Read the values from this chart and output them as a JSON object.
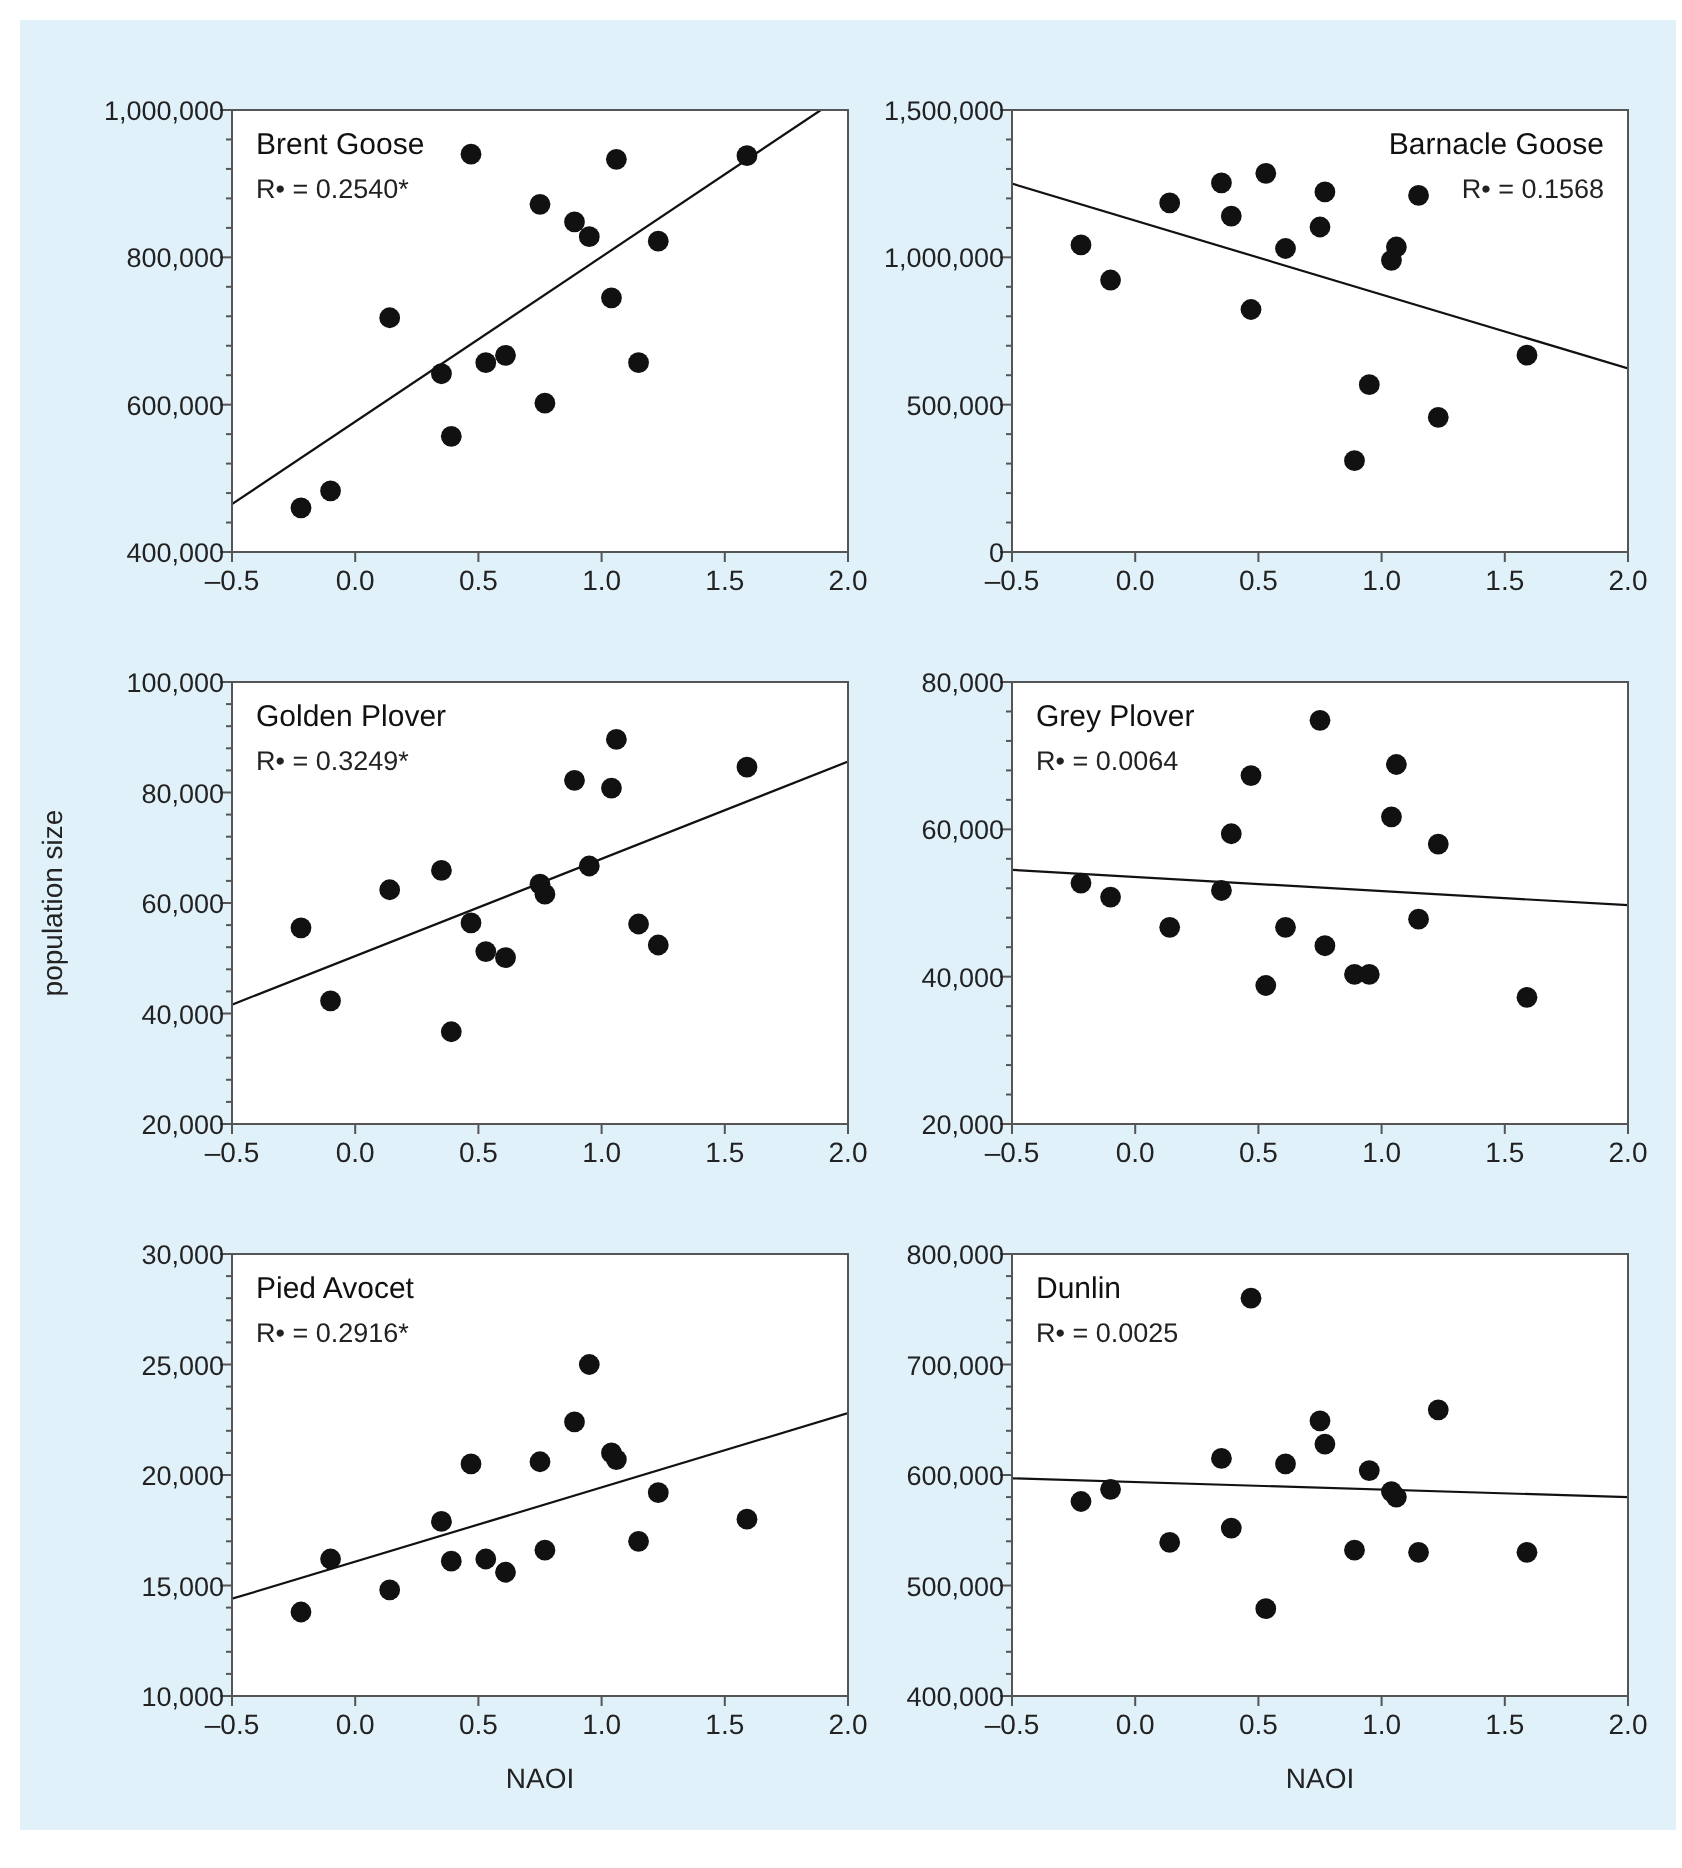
{
  "chart_data": [
    {
      "type": "scatter",
      "legend": "top left",
      "annotations": [
        "R• = 0.2540*"
      ],
      "xlim": [
        -0.5,
        2.0
      ],
      "xticks": [
        {
          "value": -0.5,
          "label": "–0.5"
        },
        {
          "value": 0,
          "label": "0.0"
        },
        {
          "value": 0.5,
          "label": "0.5"
        },
        {
          "value": 1,
          "label": "1.0"
        },
        {
          "value": 1.5,
          "label": "1.5"
        },
        {
          "value": 2,
          "label": "2.0"
        }
      ],
      "ylim": [
        400000,
        1000000
      ],
      "yticks": [
        {
          "value": 400000,
          "label": "400,000"
        },
        {
          "value": 440000,
          "label": null
        },
        {
          "value": 480000,
          "label": null
        },
        {
          "value": 520000,
          "label": null
        },
        {
          "value": 560000,
          "label": null
        },
        {
          "value": 600000,
          "label": "600,000"
        },
        {
          "value": 640000,
          "label": null
        },
        {
          "value": 680000,
          "label": null
        },
        {
          "value": 720000,
          "label": null
        },
        {
          "value": 760000,
          "label": null
        },
        {
          "value": 800000,
          "label": "800,000"
        },
        {
          "value": 840000,
          "label": null
        },
        {
          "value": 880000,
          "label": null
        },
        {
          "value": 920000,
          "label": null
        },
        {
          "value": 960000,
          "label": null
        },
        {
          "value": 1000000,
          "label": "1,000,000"
        }
      ],
      "x": [
        -0.22,
        -0.1,
        0.14,
        0.35,
        0.39,
        0.47,
        0.53,
        0.61,
        0.75,
        0.77,
        0.89,
        0.95,
        1.04,
        1.06,
        1.15,
        1.23,
        1.59
      ],
      "series": [
        {
          "name": "Brent Goose",
          "marker": "circle",
          "color": "#111111",
          "values": [
            460000,
            483000,
            718000,
            642000,
            557000,
            940000,
            657000,
            667000,
            872000,
            602000,
            848000,
            828000,
            745000,
            933000,
            657000,
            822000,
            938000
          ]
        },
        {
          "type": "line",
          "color": "#111111",
          "x": [
            -0.5,
            1.89
          ],
          "values": [
            465000,
            1000000
          ]
        }
      ]
    },
    {
      "type": "scatter",
      "legend": "top right",
      "annotations": [
        "R• = 0.1568"
      ],
      "xlim": [
        -0.5,
        2.0
      ],
      "xticks": [
        {
          "value": -0.5,
          "label": "–0.5"
        },
        {
          "value": 0,
          "label": "0.0"
        },
        {
          "value": 0.5,
          "label": "0.5"
        },
        {
          "value": 1,
          "label": "1.0"
        },
        {
          "value": 1.5,
          "label": "1.5"
        },
        {
          "value": 2,
          "label": "2.0"
        }
      ],
      "ylim": [
        0,
        1500000
      ],
      "yticks": [
        0,
        {
          "value": 100000,
          "label": null
        },
        {
          "value": 200000,
          "label": null
        },
        {
          "value": 300000,
          "label": null
        },
        {
          "value": 400000,
          "label": null
        },
        {
          "value": 500000,
          "label": "500,000"
        },
        {
          "value": 600000,
          "label": null
        },
        {
          "value": 700000,
          "label": null
        },
        {
          "value": 800000,
          "label": null
        },
        {
          "value": 900000,
          "label": null
        },
        {
          "value": 1000000,
          "label": "1,000,000"
        },
        {
          "value": 1100000,
          "label": null
        },
        {
          "value": 1200000,
          "label": null
        },
        {
          "value": 1300000,
          "label": null
        },
        {
          "value": 1400000,
          "label": null
        },
        {
          "value": 1500000,
          "label": "1,500,000"
        }
      ],
      "x": [
        -0.22,
        -0.1,
        0.14,
        0.35,
        0.39,
        0.47,
        0.53,
        0.61,
        0.75,
        0.77,
        0.89,
        0.95,
        1.04,
        1.06,
        1.15,
        1.23,
        1.59
      ],
      "series": [
        {
          "name": "Barnacle Goose",
          "marker": "circle",
          "color": "#111111",
          "values": [
            1042000,
            923000,
            1185000,
            1253000,
            1140000,
            823000,
            1285000,
            1030000,
            1103000,
            1222000,
            310000,
            568000,
            990000,
            1035000,
            1210000,
            457000,
            668000
          ]
        },
        {
          "type": "line",
          "color": "#111111",
          "x": [
            -0.5,
            2.0
          ],
          "values": [
            1250000,
            623000
          ]
        }
      ]
    },
    {
      "type": "scatter",
      "legend": "top left",
      "ylabel": "population size",
      "annotations": [
        "R• = 0.3249*"
      ],
      "xlim": [
        -0.5,
        2.0
      ],
      "xticks": [
        {
          "value": -0.5,
          "label": "–0.5"
        },
        {
          "value": 0,
          "label": "0.0"
        },
        {
          "value": 0.5,
          "label": "0.5"
        },
        {
          "value": 1,
          "label": "1.0"
        },
        {
          "value": 1.5,
          "label": "1.5"
        },
        {
          "value": 2,
          "label": "2.0"
        }
      ],
      "ylim": [
        20000,
        100000
      ],
      "yticks": [
        {
          "value": 20000,
          "label": "20,000"
        },
        {
          "value": 24000,
          "label": null
        },
        {
          "value": 28000,
          "label": null
        },
        {
          "value": 32000,
          "label": null
        },
        {
          "value": 36000,
          "label": null
        },
        {
          "value": 40000,
          "label": "40,000"
        },
        {
          "value": 44000,
          "label": null
        },
        {
          "value": 48000,
          "label": null
        },
        {
          "value": 52000,
          "label": null
        },
        {
          "value": 56000,
          "label": null
        },
        {
          "value": 60000,
          "label": "60,000"
        },
        {
          "value": 64000,
          "label": null
        },
        {
          "value": 68000,
          "label": null
        },
        {
          "value": 72000,
          "label": null
        },
        {
          "value": 76000,
          "label": null
        },
        {
          "value": 80000,
          "label": "80,000"
        },
        {
          "value": 84000,
          "label": null
        },
        {
          "value": 88000,
          "label": null
        },
        {
          "value": 92000,
          "label": null
        },
        {
          "value": 96000,
          "label": null
        },
        {
          "value": 100000,
          "label": "100,000"
        }
      ],
      "x": [
        -0.22,
        -0.1,
        0.14,
        0.35,
        0.39,
        0.47,
        0.53,
        0.61,
        0.75,
        0.77,
        0.89,
        0.95,
        1.04,
        1.06,
        1.15,
        1.23,
        1.59
      ],
      "series": [
        {
          "name": "Golden Plover",
          "marker": "circle",
          "color": "#111111",
          "values": [
            55500,
            42300,
            62400,
            65900,
            36700,
            56400,
            51200,
            50100,
            63400,
            61600,
            82200,
            66700,
            80800,
            89600,
            56200,
            52400,
            84600
          ]
        },
        {
          "type": "line",
          "color": "#111111",
          "x": [
            -0.5,
            2.0
          ],
          "values": [
            41600,
            85600
          ]
        }
      ]
    },
    {
      "type": "scatter",
      "legend": "top left",
      "annotations": [
        "R• = 0.0064"
      ],
      "xlim": [
        -0.5,
        2.0
      ],
      "xticks": [
        {
          "value": -0.5,
          "label": "–0.5"
        },
        {
          "value": 0,
          "label": "0.0"
        },
        {
          "value": 0.5,
          "label": "0.5"
        },
        {
          "value": 1,
          "label": "1.0"
        },
        {
          "value": 1.5,
          "label": "1.5"
        },
        {
          "value": 2,
          "label": "2.0"
        }
      ],
      "ylim": [
        20000,
        80000
      ],
      "yticks": [
        {
          "value": 20000,
          "label": "20,000"
        },
        {
          "value": 24000,
          "label": null
        },
        {
          "value": 28000,
          "label": null
        },
        {
          "value": 32000,
          "label": null
        },
        {
          "value": 36000,
          "label": null
        },
        {
          "value": 40000,
          "label": "40,000"
        },
        {
          "value": 44000,
          "label": null
        },
        {
          "value": 48000,
          "label": null
        },
        {
          "value": 52000,
          "label": null
        },
        {
          "value": 56000,
          "label": null
        },
        {
          "value": 60000,
          "label": "60,000"
        },
        {
          "value": 64000,
          "label": null
        },
        {
          "value": 68000,
          "label": null
        },
        {
          "value": 72000,
          "label": null
        },
        {
          "value": 76000,
          "label": null
        },
        {
          "value": 80000,
          "label": "80,000"
        }
      ],
      "x": [
        -0.22,
        -0.1,
        0.14,
        0.35,
        0.39,
        0.47,
        0.53,
        0.61,
        0.75,
        0.77,
        0.89,
        0.95,
        1.04,
        1.06,
        1.15,
        1.23,
        1.59
      ],
      "series": [
        {
          "name": "Grey Plover",
          "marker": "circle",
          "color": "#111111",
          "values": [
            52700,
            50800,
            46700,
            51700,
            59400,
            67300,
            38800,
            46700,
            74800,
            44200,
            40300,
            40300,
            61700,
            68800,
            47800,
            58000,
            37200
          ]
        },
        {
          "type": "line",
          "color": "#111111",
          "x": [
            -0.5,
            2.0
          ],
          "values": [
            54500,
            49700
          ]
        }
      ]
    },
    {
      "type": "scatter",
      "legend": "top left",
      "xlabel": "NAOI",
      "annotations": [
        "R• = 0.2916*"
      ],
      "xlim": [
        -0.5,
        2.0
      ],
      "xticks": [
        {
          "value": -0.5,
          "label": "–0.5"
        },
        {
          "value": 0,
          "label": "0.0"
        },
        {
          "value": 0.5,
          "label": "0.5"
        },
        {
          "value": 1,
          "label": "1.0"
        },
        {
          "value": 1.5,
          "label": "1.5"
        },
        {
          "value": 2,
          "label": "2.0"
        }
      ],
      "ylim": [
        10000,
        30000
      ],
      "yticks": [
        {
          "value": 10000,
          "label": "10,000"
        },
        {
          "value": 11000,
          "label": null
        },
        {
          "value": 12000,
          "label": null
        },
        {
          "value": 13000,
          "label": null
        },
        {
          "value": 14000,
          "label": null
        },
        {
          "value": 15000,
          "label": "15,000"
        },
        {
          "value": 16000,
          "label": null
        },
        {
          "value": 17000,
          "label": null
        },
        {
          "value": 18000,
          "label": null
        },
        {
          "value": 19000,
          "label": null
        },
        {
          "value": 20000,
          "label": "20,000"
        },
        {
          "value": 21000,
          "label": null
        },
        {
          "value": 22000,
          "label": null
        },
        {
          "value": 23000,
          "label": null
        },
        {
          "value": 24000,
          "label": null
        },
        {
          "value": 25000,
          "label": "25,000"
        },
        {
          "value": 26000,
          "label": null
        },
        {
          "value": 27000,
          "label": null
        },
        {
          "value": 28000,
          "label": null
        },
        {
          "value": 29000,
          "label": null
        },
        {
          "value": 30000,
          "label": "30,000"
        }
      ],
      "x": [
        -0.22,
        -0.1,
        0.14,
        0.35,
        0.39,
        0.47,
        0.53,
        0.61,
        0.75,
        0.77,
        0.89,
        0.95,
        1.04,
        1.06,
        1.15,
        1.23,
        1.59
      ],
      "series": [
        {
          "name": "Pied Avocet",
          "marker": "circle",
          "color": "#111111",
          "values": [
            13800,
            16200,
            14800,
            17900,
            16100,
            20500,
            16200,
            15600,
            20600,
            16600,
            22400,
            25000,
            21000,
            20700,
            17000,
            19200,
            18000
          ]
        },
        {
          "type": "line",
          "color": "#111111",
          "x": [
            -0.5,
            2.0
          ],
          "values": [
            14400,
            22800
          ]
        }
      ]
    },
    {
      "type": "scatter",
      "legend": "top left",
      "xlabel": "NAOI",
      "annotations": [
        "R• = 0.0025"
      ],
      "xlim": [
        -0.5,
        2.0
      ],
      "xticks": [
        {
          "value": -0.5,
          "label": "–0.5"
        },
        {
          "value": 0,
          "label": "0.0"
        },
        {
          "value": 0.5,
          "label": "0.5"
        },
        {
          "value": 1,
          "label": "1.0"
        },
        {
          "value": 1.5,
          "label": "1.5"
        },
        {
          "value": 2,
          "label": "2.0"
        }
      ],
      "ylim": [
        400000,
        800000
      ],
      "yticks": [
        {
          "value": 400000,
          "label": "400,000"
        },
        {
          "value": 420000,
          "label": null
        },
        {
          "value": 440000,
          "label": null
        },
        {
          "value": 460000,
          "label": null
        },
        {
          "value": 480000,
          "label": null
        },
        {
          "value": 500000,
          "label": "500,000"
        },
        {
          "value": 520000,
          "label": null
        },
        {
          "value": 540000,
          "label": null
        },
        {
          "value": 560000,
          "label": null
        },
        {
          "value": 580000,
          "label": null
        },
        {
          "value": 600000,
          "label": "600,000"
        },
        {
          "value": 620000,
          "label": null
        },
        {
          "value": 640000,
          "label": null
        },
        {
          "value": 660000,
          "label": null
        },
        {
          "value": 680000,
          "label": null
        },
        {
          "value": 700000,
          "label": "700,000"
        },
        {
          "value": 720000,
          "label": null
        },
        {
          "value": 740000,
          "label": null
        },
        {
          "value": 760000,
          "label": null
        },
        {
          "value": 780000,
          "label": null
        },
        {
          "value": 800000,
          "label": "800,000"
        }
      ],
      "x": [
        -0.22,
        -0.1,
        0.14,
        0.35,
        0.39,
        0.47,
        0.53,
        0.61,
        0.75,
        0.77,
        0.89,
        0.95,
        1.04,
        1.06,
        1.15,
        1.23,
        1.59
      ],
      "series": [
        {
          "name": "Dunlin",
          "marker": "circle",
          "color": "#111111",
          "values": [
            576000,
            587000,
            539000,
            615000,
            552000,
            760000,
            479000,
            610000,
            649000,
            628000,
            532000,
            604000,
            585000,
            580000,
            530000,
            659000,
            530000
          ]
        },
        {
          "type": "line",
          "color": "#111111",
          "x": [
            -0.5,
            2.0
          ],
          "values": [
            597000,
            580000
          ]
        }
      ]
    }
  ]
}
